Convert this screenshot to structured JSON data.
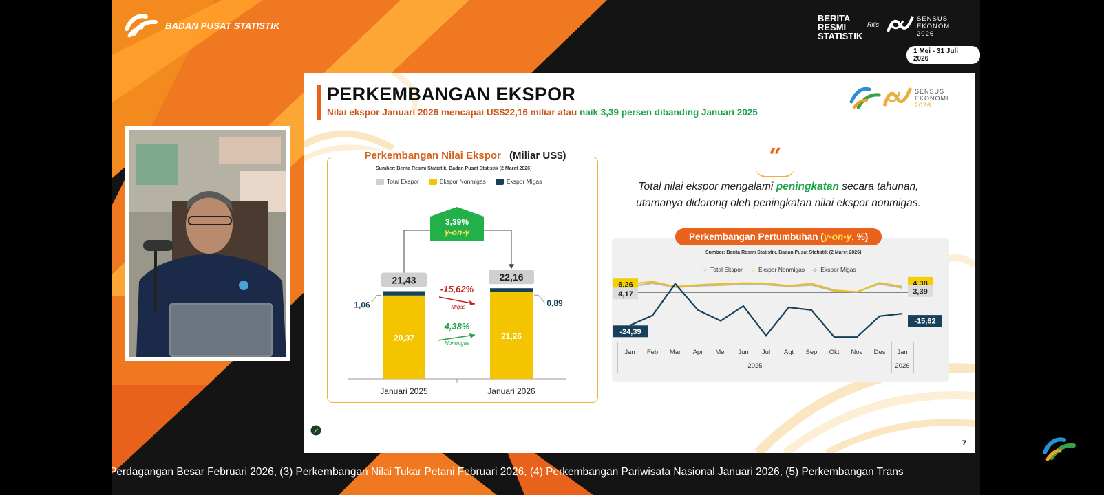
{
  "header": {
    "org_name": "BADAN PUSAT STATISTIK",
    "brs_line1": "BERITA",
    "brs_line2": "RESMI",
    "brs_line3": "STATISTIK",
    "brs_script": "Rilis",
    "se_line1": "SENSUS",
    "se_line2": "EKONOMI",
    "se_line3": "2026",
    "se_date": "1 Mei - 31 Juli 2026"
  },
  "slide": {
    "title": "PERKEMBANGAN EKSPOR",
    "subtitle_a": "Nilai ekspor Januari 2026 mencapai US$22,16 miliar atau ",
    "subtitle_b": "naik 3,39 persen dibanding Januari 2025",
    "logo_se_1": "SENSUS",
    "logo_se_2": "EKONOMI",
    "logo_se_3": "2026",
    "quote_mark": "“",
    "quote_a": "Total nilai ekspor mengalami ",
    "quote_hl": "peningkatan",
    "quote_b": " secara tahunan,",
    "quote_c": "utamanya didorong oleh peningkatan nilai ekspor nonmigas.",
    "page_number": "7"
  },
  "left_panel": {
    "title_a": "Perkembangan Nilai Ekspor ",
    "title_b": "(Miliar US$)",
    "source": "Sumber: Berita Resmi Statistik, Badan Pusat Statistik (2 Maret 2026)",
    "legend": [
      "Total Ekspor",
      "Ekspor Nonmigas",
      "Ekspor Migas"
    ],
    "yoy_value": "3,39%",
    "yoy_label": "y-on-y",
    "migas_change": "-15,62%",
    "migas_label": "Migas",
    "nonmigas_change": "4,38%",
    "nonmigas_label": "Nonmigas"
  },
  "right_panel": {
    "title_a": "Perkembangan Pertumbuhan (",
    "title_y": "y-on-y",
    "title_b": ", %)",
    "source": "Sumber: Berita Resmi Statistik, Badan Pusat Statistik (2 Maret 2026)",
    "legend": [
      "Total Ekspor",
      "Ekspor Nonmigas",
      "Ekspor Migas"
    ],
    "year_2025": "2025",
    "year_2026": "2026"
  },
  "ticker": {
    "text": "Perdagangan Besar Februari 2026, (3) Perkembangan Nilai Tukar Petani Februari 2026, (4) Perkembangan Pariwisata Nasional Januari 2026, (5) Perkembangan Trans"
  },
  "colors": {
    "orange": "#e8621c",
    "yellow": "#f5c400",
    "navy": "#17415a",
    "gray": "#cfcfcf",
    "green": "#21a34a",
    "red": "#c0221a"
  },
  "chart_data": [
    {
      "type": "bar",
      "categories": [
        "Januari 2025",
        "Januari 2026"
      ],
      "series": [
        {
          "name": "Ekspor Nonmigas",
          "values": [
            20.37,
            21.26
          ],
          "labels": [
            "20,37",
            "21,26"
          ]
        },
        {
          "name": "Ekspor Migas",
          "values": [
            1.06,
            0.89
          ],
          "labels": [
            "1,06",
            "0,89"
          ]
        },
        {
          "name": "Total Ekspor",
          "values": [
            21.43,
            22.16
          ],
          "labels": [
            "21,43",
            "22,16"
          ]
        }
      ],
      "title": "Perkembangan Nilai Ekspor (Miliar US$)",
      "stacked": true
    },
    {
      "type": "line",
      "categories": [
        "Jan",
        "Feb",
        "Mar",
        "Apr",
        "Mei",
        "Jun",
        "Jul",
        "Agt",
        "Sep",
        "Okt",
        "Nov",
        "Des",
        "Jan"
      ],
      "series": [
        {
          "name": "Total Ekspor",
          "values": [
            4.17,
            7.0,
            3.9,
            4.9,
            5.5,
            6.2,
            5.8,
            4.6,
            5.6,
            1.2,
            0.5,
            6.5,
            3.39
          ]
        },
        {
          "name": "Ekspor Nonmigas",
          "values": [
            6.26,
            8.0,
            4.4,
            5.6,
            6.4,
            7.0,
            6.8,
            5.0,
            6.6,
            1.8,
            0.4,
            7.2,
            4.38
          ]
        },
        {
          "name": "Ekspor Migas",
          "values": [
            -24.39,
            -17.0,
            6.5,
            -13.0,
            -21.0,
            -10.0,
            -32.0,
            -11.0,
            -13.0,
            -33.0,
            -33.0,
            -17.5,
            -15.62
          ]
        }
      ],
      "point_labels": [
        {
          "series": "Ekspor Nonmigas",
          "index": 0,
          "text": "6,26"
        },
        {
          "series": "Total Ekspor",
          "index": 0,
          "text": "4,17"
        },
        {
          "series": "Ekspor Migas",
          "index": 0,
          "text": "-24,39"
        },
        {
          "series": "Ekspor Nonmigas",
          "index": 12,
          "text": "4,38"
        },
        {
          "series": "Total Ekspor",
          "index": 12,
          "text": "3,39"
        },
        {
          "series": "Ekspor Migas",
          "index": 12,
          "text": "-15,62"
        }
      ],
      "title": "Perkembangan Pertumbuhan (y-on-y, %)",
      "ylim": [
        -38,
        14
      ]
    }
  ]
}
